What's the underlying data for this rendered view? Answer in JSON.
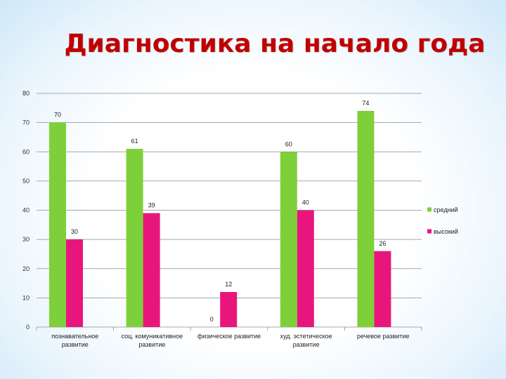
{
  "slide": {
    "title": "Диагностика на начало года"
  },
  "chart_data": {
    "type": "bar",
    "title": "Диагностика на начало года",
    "categories": [
      [
        "познавательное",
        "развитие"
      ],
      [
        "соц. комуникативное",
        "развитие"
      ],
      [
        "физическое развитие"
      ],
      [
        "худ. эстетическое",
        "развитие"
      ],
      [
        "речевое развитие"
      ]
    ],
    "series": [
      {
        "name": "средний",
        "color": "#7ed03a",
        "values": [
          70,
          61,
          0,
          60,
          74
        ]
      },
      {
        "name": "высокий",
        "color": "#e8167c",
        "values": [
          30,
          39,
          12,
          40,
          26
        ]
      }
    ],
    "ylim": [
      0,
      80
    ],
    "yticks": [
      0,
      10,
      20,
      30,
      40,
      50,
      60,
      70,
      80
    ],
    "grid": true,
    "legend": "right",
    "xlabel": "",
    "ylabel": ""
  }
}
